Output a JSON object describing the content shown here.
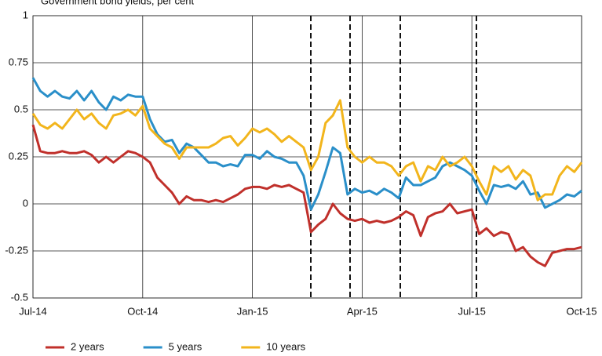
{
  "chart_data": {
    "type": "line",
    "title": "Government bond yields, per cent",
    "categories": [
      "Jul-14",
      null,
      null,
      null,
      null,
      null,
      null,
      null,
      null,
      null,
      null,
      null,
      null,
      null,
      null,
      "Oct-14",
      null,
      null,
      null,
      null,
      null,
      null,
      null,
      null,
      null,
      null,
      null,
      null,
      null,
      null,
      "Jan-15",
      null,
      null,
      null,
      null,
      null,
      null,
      null,
      null,
      null,
      null,
      null,
      null,
      null,
      null,
      "Apr-15",
      null,
      null,
      null,
      null,
      null,
      null,
      null,
      null,
      null,
      null,
      null,
      null,
      null,
      null,
      "Jul-15",
      null,
      null,
      null,
      null,
      null,
      null,
      null,
      null,
      null,
      null,
      null,
      null,
      null,
      null,
      "Oct-15"
    ],
    "series": [
      {
        "name": "2 years",
        "color": "#c0302b",
        "values": [
          0.42,
          0.28,
          0.27,
          0.27,
          0.28,
          0.27,
          0.27,
          0.28,
          0.26,
          0.22,
          0.25,
          0.22,
          0.25,
          0.28,
          0.27,
          0.25,
          0.22,
          0.14,
          0.1,
          0.06,
          0.0,
          0.04,
          0.02,
          0.02,
          0.01,
          0.02,
          0.01,
          0.03,
          0.05,
          0.08,
          0.09,
          0.09,
          0.08,
          0.1,
          0.09,
          0.1,
          0.08,
          0.06,
          -0.15,
          -0.11,
          -0.08,
          0.0,
          -0.05,
          -0.08,
          -0.09,
          -0.08,
          -0.1,
          -0.09,
          -0.1,
          -0.09,
          -0.07,
          -0.04,
          -0.06,
          -0.17,
          -0.07,
          -0.05,
          -0.04,
          0.0,
          -0.05,
          -0.04,
          -0.03,
          -0.16,
          -0.13,
          -0.17,
          -0.15,
          -0.16,
          -0.25,
          -0.23,
          -0.28,
          -0.31,
          -0.33,
          -0.26,
          -0.25,
          -0.24,
          -0.24,
          -0.23
        ]
      },
      {
        "name": "5 years",
        "color": "#2a8fc9",
        "values": [
          0.67,
          0.6,
          0.57,
          0.6,
          0.57,
          0.56,
          0.6,
          0.55,
          0.6,
          0.54,
          0.5,
          0.57,
          0.55,
          0.58,
          0.57,
          0.57,
          0.45,
          0.37,
          0.33,
          0.34,
          0.27,
          0.32,
          0.3,
          0.26,
          0.22,
          0.22,
          0.2,
          0.21,
          0.2,
          0.26,
          0.26,
          0.24,
          0.28,
          0.25,
          0.24,
          0.22,
          0.22,
          0.15,
          -0.03,
          0.05,
          0.17,
          0.3,
          0.27,
          0.05,
          0.08,
          0.06,
          0.07,
          0.05,
          0.08,
          0.06,
          0.03,
          0.14,
          0.1,
          0.1,
          0.12,
          0.14,
          0.2,
          0.22,
          0.2,
          0.18,
          0.15,
          0.07,
          0.0,
          0.1,
          0.09,
          0.1,
          0.08,
          0.12,
          0.05,
          0.06,
          -0.02,
          0.0,
          0.02,
          0.05,
          0.04,
          0.07
        ]
      },
      {
        "name": "10 years",
        "color": "#f2b51c",
        "values": [
          0.48,
          0.42,
          0.4,
          0.43,
          0.4,
          0.45,
          0.5,
          0.45,
          0.48,
          0.43,
          0.4,
          0.47,
          0.48,
          0.5,
          0.47,
          0.52,
          0.4,
          0.36,
          0.32,
          0.3,
          0.24,
          0.3,
          0.3,
          0.3,
          0.3,
          0.32,
          0.35,
          0.36,
          0.31,
          0.35,
          0.4,
          0.38,
          0.4,
          0.37,
          0.33,
          0.36,
          0.33,
          0.3,
          0.18,
          0.25,
          0.43,
          0.47,
          0.55,
          0.3,
          0.25,
          0.22,
          0.25,
          0.22,
          0.22,
          0.2,
          0.15,
          0.2,
          0.22,
          0.12,
          0.2,
          0.18,
          0.25,
          0.2,
          0.22,
          0.25,
          0.2,
          0.12,
          0.05,
          0.2,
          0.17,
          0.2,
          0.13,
          0.18,
          0.15,
          0.02,
          0.05,
          0.05,
          0.15,
          0.2,
          0.17,
          0.22
        ]
      }
    ],
    "ylim": [
      -0.5,
      1
    ],
    "yticks": [
      -0.5,
      -0.25,
      0,
      0.25,
      0.5,
      0.75,
      1
    ],
    "grid": true
  }
}
